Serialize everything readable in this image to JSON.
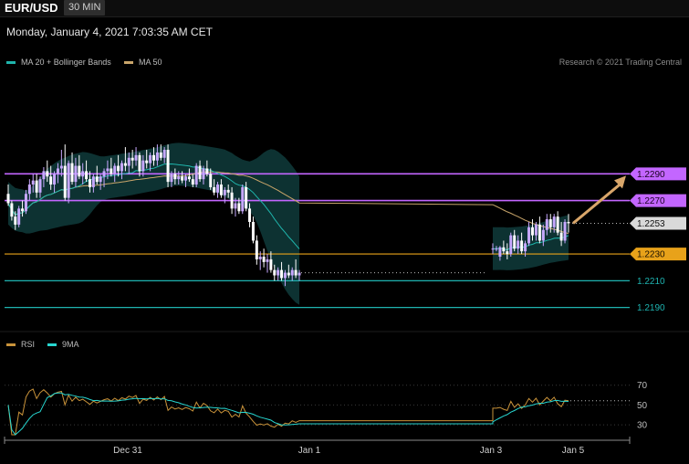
{
  "header": {
    "symbol": "EUR/USD",
    "timeframe": "30 MIN",
    "datetime": "Monday, January 4, 2021 7:03:35 AM CET"
  },
  "legend": {
    "ma20_label": "MA 20 + Bollinger Bands",
    "ma50_label": "MA 50",
    "credit": "Research © 2021 Trading Central",
    "rsi_label": "RSI",
    "rsi_ma_label": "9MA"
  },
  "colors": {
    "background": "#000000",
    "bull": "#c7a8ff",
    "bear": "#ffffff",
    "ma20": "#1fb5ac",
    "bollinger_fill": "#0f3b3b",
    "ma50": "#c9a56a",
    "resistance": "#c366ff",
    "pivot": "#e8a21a",
    "support": "#1eb3b0",
    "last_price": "#d9d9d9",
    "arrow": "#d9a66a",
    "rsi": "#c9933a",
    "rsi_ma": "#27d6d0"
  },
  "chart_data": {
    "type": "candlestick",
    "x_ticks": [
      "Dec 31",
      "Jan 1",
      "Jan 3",
      "Jan 5"
    ],
    "price_range": [
      1.2174,
      1.2362
    ],
    "levels": [
      {
        "label": "1.2290",
        "value": 1.229,
        "kind": "resistance"
      },
      {
        "label": "1.2270",
        "value": 1.227,
        "kind": "resistance"
      },
      {
        "label": "1.2253",
        "value": 1.2253,
        "kind": "last"
      },
      {
        "label": "1.2230",
        "value": 1.223,
        "kind": "pivot"
      },
      {
        "label": "1.2210",
        "value": 1.221,
        "kind": "support"
      },
      {
        "label": "1.2190",
        "value": 1.219,
        "kind": "support"
      }
    ],
    "last_price": 1.2253,
    "arrow_target": 1.229,
    "candles_session1": [
      [
        1.2275,
        1.2282,
        1.2266,
        1.2268
      ],
      [
        1.2268,
        1.227,
        1.2255,
        1.2258
      ],
      [
        1.2258,
        1.2262,
        1.2248,
        1.2252
      ],
      [
        1.2252,
        1.2266,
        1.225,
        1.2264
      ],
      [
        1.2264,
        1.227,
        1.2258,
        1.2262
      ],
      [
        1.2262,
        1.2278,
        1.226,
        1.2275
      ],
      [
        1.2275,
        1.2286,
        1.227,
        1.2282
      ],
      [
        1.2282,
        1.229,
        1.2276,
        1.2285
      ],
      [
        1.2285,
        1.229,
        1.2272,
        1.2276
      ],
      [
        1.2276,
        1.2288,
        1.2272,
        1.2286
      ],
      [
        1.2286,
        1.2295,
        1.228,
        1.2292
      ],
      [
        1.2292,
        1.23,
        1.2284,
        1.2288
      ],
      [
        1.2288,
        1.2296,
        1.2278,
        1.2282
      ],
      [
        1.2282,
        1.2292,
        1.2276,
        1.229
      ],
      [
        1.229,
        1.2298,
        1.2283,
        1.2294
      ],
      [
        1.2294,
        1.2308,
        1.2288,
        1.2296
      ],
      [
        1.2296,
        1.2312,
        1.227,
        1.2272
      ],
      [
        1.2272,
        1.23,
        1.2268,
        1.2298
      ],
      [
        1.2298,
        1.2306,
        1.2282,
        1.2284
      ],
      [
        1.2284,
        1.2302,
        1.228,
        1.2296
      ],
      [
        1.2296,
        1.2304,
        1.2286,
        1.2288
      ],
      [
        1.2288,
        1.2298,
        1.2282,
        1.2292
      ],
      [
        1.2292,
        1.23,
        1.2284,
        1.2286
      ],
      [
        1.2286,
        1.2292,
        1.2276,
        1.228
      ],
      [
        1.228,
        1.229,
        1.2276,
        1.2288
      ],
      [
        1.2288,
        1.2296,
        1.2282,
        1.2284
      ],
      [
        1.2284,
        1.229,
        1.2278,
        1.2288
      ],
      [
        1.2288,
        1.2294,
        1.228,
        1.2292
      ],
      [
        1.2292,
        1.23,
        1.2286,
        1.2294
      ],
      [
        1.2294,
        1.2302,
        1.2288,
        1.229
      ],
      [
        1.229,
        1.2298,
        1.2284,
        1.2296
      ],
      [
        1.2296,
        1.2304,
        1.2288,
        1.2292
      ],
      [
        1.2292,
        1.23,
        1.2286,
        1.2298
      ],
      [
        1.2298,
        1.231,
        1.2292,
        1.2296
      ],
      [
        1.2296,
        1.2306,
        1.229,
        1.2302
      ],
      [
        1.2302,
        1.2308,
        1.2294,
        1.23
      ],
      [
        1.23,
        1.231,
        1.2296,
        1.2304
      ],
      [
        1.2304,
        1.2306,
        1.2288,
        1.2292
      ],
      [
        1.2292,
        1.2304,
        1.2288,
        1.23
      ],
      [
        1.23,
        1.2308,
        1.2294,
        1.2298
      ],
      [
        1.2298,
        1.2306,
        1.2292,
        1.2304
      ],
      [
        1.2304,
        1.231,
        1.2296,
        1.23
      ],
      [
        1.23,
        1.2312,
        1.2296,
        1.2306
      ],
      [
        1.2306,
        1.2312,
        1.23,
        1.2302
      ],
      [
        1.2302,
        1.231,
        1.2298,
        1.2308
      ],
      [
        1.2308,
        1.2312,
        1.228,
        1.2284
      ],
      [
        1.2284,
        1.2292,
        1.228,
        1.229
      ],
      [
        1.229,
        1.2294,
        1.2282,
        1.2286
      ],
      [
        1.2286,
        1.2292,
        1.2282,
        1.2288
      ],
      [
        1.2288,
        1.2292,
        1.2283,
        1.2285
      ],
      [
        1.2285,
        1.229,
        1.228,
        1.2288
      ],
      [
        1.2288,
        1.2294,
        1.2284,
        1.2286
      ],
      [
        1.2286,
        1.229,
        1.228,
        1.2282
      ],
      [
        1.2282,
        1.2298,
        1.228,
        1.2296
      ],
      [
        1.2296,
        1.23,
        1.2284,
        1.2286
      ],
      [
        1.2286,
        1.2296,
        1.2282,
        1.2294
      ],
      [
        1.2294,
        1.23,
        1.2288,
        1.229
      ],
      [
        1.229,
        1.2294,
        1.2278,
        1.228
      ],
      [
        1.228,
        1.2286,
        1.2274,
        1.2276
      ],
      [
        1.2276,
        1.2284,
        1.2272,
        1.2282
      ],
      [
        1.2282,
        1.2286,
        1.2272,
        1.2274
      ],
      [
        1.2274,
        1.228,
        1.2268,
        1.2278
      ],
      [
        1.2278,
        1.2282,
        1.2272,
        1.2276
      ],
      [
        1.2276,
        1.228,
        1.226,
        1.2264
      ],
      [
        1.2264,
        1.2272,
        1.2258,
        1.2268
      ],
      [
        1.2268,
        1.2272,
        1.226,
        1.2262
      ],
      [
        1.2262,
        1.2282,
        1.226,
        1.228
      ],
      [
        1.228,
        1.2284,
        1.2262,
        1.2264
      ],
      [
        1.2264,
        1.2268,
        1.225,
        1.2254
      ],
      [
        1.2254,
        1.2258,
        1.2238,
        1.224
      ],
      [
        1.224,
        1.2244,
        1.2222,
        1.2226
      ],
      [
        1.2226,
        1.2232,
        1.2218,
        1.2228
      ],
      [
        1.2228,
        1.2234,
        1.222,
        1.2224
      ],
      [
        1.2224,
        1.223,
        1.2216,
        1.2226
      ],
      [
        1.2226,
        1.2232,
        1.2216,
        1.2218
      ],
      [
        1.2218,
        1.2222,
        1.221,
        1.2214
      ],
      [
        1.2214,
        1.222,
        1.221,
        1.2218
      ],
      [
        1.2218,
        1.2224,
        1.221,
        1.2212
      ],
      [
        1.2212,
        1.2218,
        1.2206,
        1.2216
      ],
      [
        1.2216,
        1.2222,
        1.2212,
        1.2214
      ],
      [
        1.2214,
        1.222,
        1.221,
        1.2218
      ],
      [
        1.2218,
        1.2226,
        1.2212,
        1.2214
      ],
      [
        1.2214,
        1.2218,
        1.221,
        1.2216
      ]
    ],
    "candles_session2": [
      [
        1.2234,
        1.2238,
        1.223,
        1.2234
      ],
      [
        1.2234,
        1.2236,
        1.2232,
        1.2234
      ],
      [
        1.2228,
        1.2236,
        1.2225,
        1.2235
      ],
      [
        1.2235,
        1.224,
        1.223,
        1.2232
      ],
      [
        1.2232,
        1.2238,
        1.2226,
        1.223
      ],
      [
        1.223,
        1.2246,
        1.2228,
        1.2244
      ],
      [
        1.2244,
        1.2248,
        1.2232,
        1.2234
      ],
      [
        1.2234,
        1.2244,
        1.223,
        1.224
      ],
      [
        1.224,
        1.2246,
        1.223,
        1.2232
      ],
      [
        1.2232,
        1.224,
        1.2228,
        1.2238
      ],
      [
        1.2238,
        1.2254,
        1.2236,
        1.225
      ],
      [
        1.225,
        1.2256,
        1.224,
        1.2244
      ],
      [
        1.2244,
        1.2254,
        1.224,
        1.2252
      ],
      [
        1.2252,
        1.2258,
        1.2238,
        1.224
      ],
      [
        1.224,
        1.2252,
        1.2236,
        1.2248
      ],
      [
        1.2248,
        1.226,
        1.2244,
        1.2256
      ],
      [
        1.2256,
        1.226,
        1.2246,
        1.225
      ],
      [
        1.225,
        1.226,
        1.2246,
        1.2258
      ],
      [
        1.2258,
        1.2262,
        1.2244,
        1.2246
      ],
      [
        1.2246,
        1.2254,
        1.2236,
        1.224
      ],
      [
        1.224,
        1.2256,
        1.2238,
        1.2254
      ],
      [
        1.2254,
        1.226,
        1.2246,
        1.2253
      ]
    ],
    "rsi_range": [
      20,
      90
    ],
    "rsi_levels": [
      70,
      50,
      30
    ],
    "rsi_ticks": [
      "70",
      "50",
      "30"
    ]
  }
}
